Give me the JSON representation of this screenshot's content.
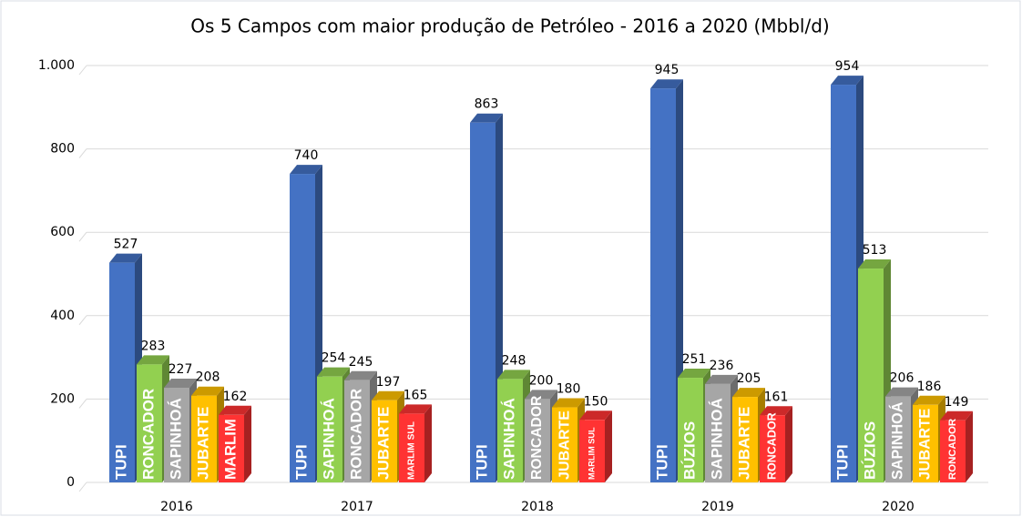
{
  "chart_data": {
    "type": "bar3d",
    "title": "Os 5 Campos com maior produção de Petróleo - 2016 a 2020 (Mbbl/d)",
    "categories": [
      "2016",
      "2017",
      "2018",
      "2019",
      "2020"
    ],
    "series": [
      {
        "color": "#4472c4",
        "values": [
          527,
          740,
          863,
          945,
          954
        ],
        "bar_labels": [
          "TUPI",
          "TUPI",
          "TUPI",
          "TUPI",
          "TUPI"
        ]
      },
      {
        "color": "#92d050",
        "values": [
          283,
          254,
          248,
          251,
          513
        ],
        "bar_labels": [
          "RONCADOR",
          "SAPINHOÁ",
          "SAPINHOÁ",
          "BÚZIOS",
          "BÚZIOS"
        ]
      },
      {
        "color": "#a6a6a6",
        "values": [
          227,
          245,
          200,
          236,
          206
        ],
        "bar_labels": [
          "SAPINHOÁ",
          "RONCADOR",
          "RONCADOR",
          "SAPINHOÁ",
          "SAPINHOÁ"
        ]
      },
      {
        "color": "#ffc000",
        "values": [
          208,
          197,
          180,
          205,
          186
        ],
        "bar_labels": [
          "JUBARTE",
          "JUBARTE",
          "JUBARTE",
          "JUBARTE",
          "JUBARTE"
        ]
      },
      {
        "color": "#ff3333",
        "values": [
          162,
          165,
          150,
          161,
          149
        ],
        "bar_labels": [
          "MARLIM",
          "MARLIM SUL",
          "MARLIM SUL",
          "RONCADOR",
          "RONCADOR"
        ]
      }
    ],
    "ylim": [
      0,
      1000
    ],
    "yticks": [
      0,
      200,
      400,
      600,
      800,
      {
        "value": 1000,
        "label": "1.000"
      }
    ],
    "grid": true
  }
}
